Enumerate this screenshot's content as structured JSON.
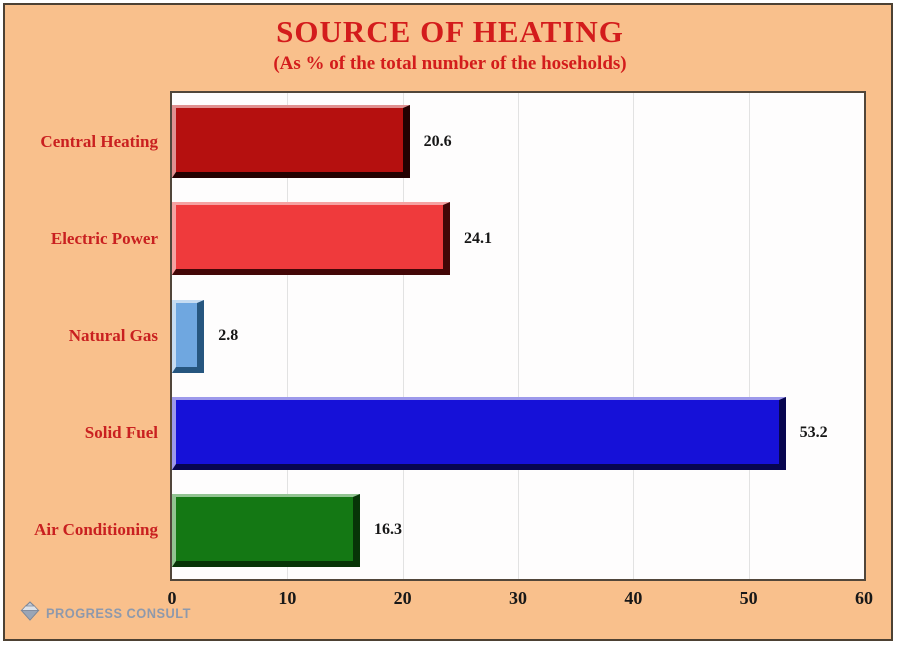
{
  "frame": {
    "background": "#f9c08c",
    "border_color": "#4d4133"
  },
  "header": {
    "title": "SOURCE OF HEATING",
    "subtitle": "(As % of the total number of the hoseholds)",
    "text_color": "#d31c1c"
  },
  "chart_data": {
    "type": "bar",
    "orientation": "horizontal",
    "title": "SOURCE OF HEATING",
    "subtitle": "(As % of the total number of the hoseholds)",
    "categories": [
      "Central Heating",
      "Electric Power",
      "Natural Gas",
      "Solid Fuel",
      "Air Conditioning"
    ],
    "values": [
      20.6,
      24.1,
      2.8,
      53.2,
      16.3
    ],
    "value_labels": [
      "20.6",
      "24.1",
      "2.8",
      "53.2",
      "16.3"
    ],
    "bar_colors": [
      {
        "fill": "#b5100f",
        "highlight": "#e09090",
        "shadow": "#230101"
      },
      {
        "fill": "#ef3a3c",
        "highlight": "#f6a2a2",
        "shadow": "#430707"
      },
      {
        "fill": "#6fa7e0",
        "highlight": "#c6dcf2",
        "shadow": "#26567f"
      },
      {
        "fill": "#1611d8",
        "highlight": "#9d99eb",
        "shadow": "#070650"
      },
      {
        "fill": "#147814",
        "highlight": "#92c492",
        "shadow": "#073407"
      }
    ],
    "xlabel": "",
    "ylabel": "",
    "xlim": [
      0,
      60
    ],
    "x_ticks": [
      "0",
      "10",
      "20",
      "30",
      "40",
      "50",
      "60"
    ],
    "grid": "vertical-light-gray",
    "legend": "none",
    "plot_background": "#fefdfd",
    "category_label_color": "#c92020",
    "value_label_color": "#161616"
  },
  "footer": {
    "logo_text": "PROGRESS CONSULT",
    "logo_icon": "diamond-gem-icon",
    "logo_color": "#8e99ac"
  }
}
